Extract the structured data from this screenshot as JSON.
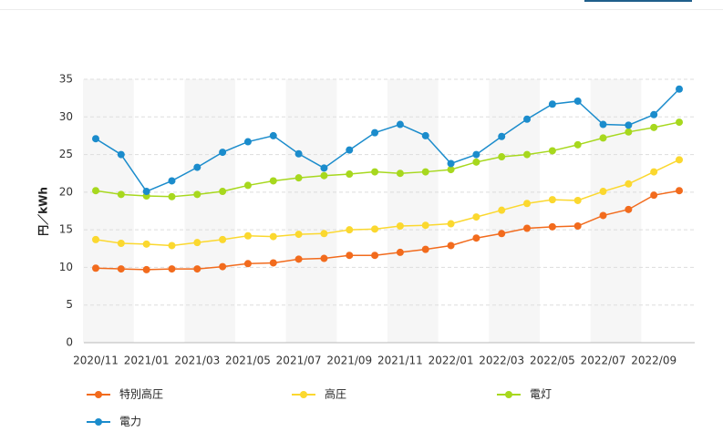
{
  "chart_data": {
    "type": "line",
    "ylabel": "円／kWh",
    "xlabel": "",
    "ylim": [
      0,
      35
    ],
    "yticks": [
      0,
      5,
      10,
      15,
      20,
      25,
      30,
      35
    ],
    "grid": "horizontal dashed",
    "legend_position": "bottom",
    "x": [
      "2020/11",
      "2020/12",
      "2021/01",
      "2021/02",
      "2021/03",
      "2021/04",
      "2021/05",
      "2021/06",
      "2021/07",
      "2021/08",
      "2021/09",
      "2021/10",
      "2021/11",
      "2021/12",
      "2022/01",
      "2022/02",
      "2022/03",
      "2022/04",
      "2022/05",
      "2022/06",
      "2022/07",
      "2022/08",
      "2022/09",
      "2022/10"
    ],
    "x_tick_labels": [
      "2020/11",
      "2021/01",
      "2021/03",
      "2021/05",
      "2021/07",
      "2021/09",
      "2021/11",
      "2022/01",
      "2022/03",
      "2022/05",
      "2022/07",
      "2022/09"
    ],
    "series": [
      {
        "name": "特別高圧",
        "color": "#f26b1d",
        "values": [
          9.9,
          9.8,
          9.7,
          9.8,
          9.8,
          10.1,
          10.5,
          10.6,
          11.1,
          11.2,
          11.6,
          11.6,
          12.0,
          12.4,
          12.9,
          13.9,
          14.5,
          15.2,
          15.4,
          15.5,
          16.9,
          17.7,
          19.6,
          20.2
        ]
      },
      {
        "name": "高圧",
        "color": "#fbd82f",
        "values": [
          13.7,
          13.2,
          13.1,
          12.9,
          13.3,
          13.7,
          14.2,
          14.1,
          14.4,
          14.5,
          15.0,
          15.1,
          15.5,
          15.6,
          15.8,
          16.7,
          17.6,
          18.5,
          19.0,
          18.9,
          20.1,
          21.1,
          22.7,
          24.3
        ]
      },
      {
        "name": "電灯",
        "color": "#a7d81e",
        "values": [
          20.2,
          19.7,
          19.5,
          19.4,
          19.7,
          20.1,
          20.9,
          21.5,
          21.9,
          22.2,
          22.4,
          22.7,
          22.5,
          22.7,
          23.0,
          24.0,
          24.7,
          25.0,
          25.5,
          26.3,
          27.2,
          28.0,
          28.6,
          29.3
        ]
      },
      {
        "name": "電力",
        "color": "#1b8ccc",
        "values": [
          27.1,
          25.0,
          20.1,
          21.5,
          23.3,
          25.3,
          26.7,
          27.5,
          25.1,
          23.2,
          25.6,
          27.9,
          29.0,
          27.5,
          23.8,
          25.0,
          27.4,
          29.7,
          31.7,
          32.1,
          29.0,
          28.9,
          30.3,
          33.7
        ]
      }
    ]
  }
}
